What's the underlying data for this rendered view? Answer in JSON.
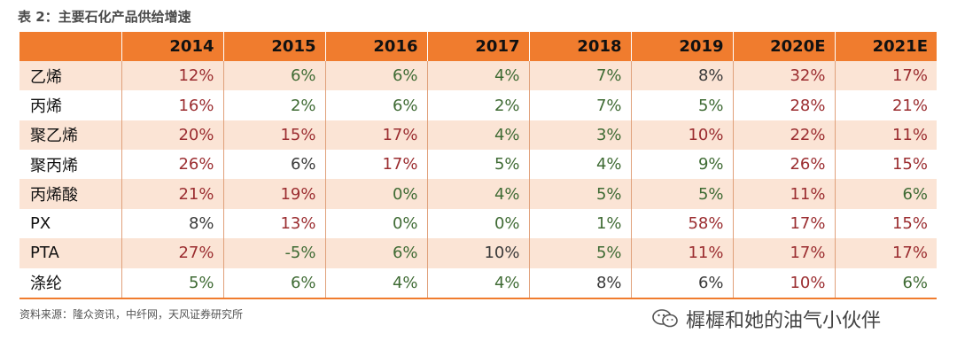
{
  "title": "表 2：主要石化产品供给增速",
  "header": [
    "",
    "2014",
    "2015",
    "2016",
    "2017",
    "2018",
    "2019",
    "2020E",
    "2021E"
  ],
  "rows": [
    {
      "label": "乙烯",
      "values": [
        "12%",
        "6%",
        "6%",
        "4%",
        "7%",
        "8%",
        "32%",
        "17%"
      ],
      "colors": [
        "red",
        "green",
        "green",
        "green",
        "green",
        "grey",
        "red",
        "red"
      ]
    },
    {
      "label": "丙烯",
      "values": [
        "16%",
        "2%",
        "6%",
        "2%",
        "7%",
        "5%",
        "28%",
        "21%"
      ],
      "colors": [
        "red",
        "green",
        "green",
        "green",
        "green",
        "green",
        "red",
        "red"
      ]
    },
    {
      "label": "聚乙烯",
      "values": [
        "20%",
        "15%",
        "17%",
        "4%",
        "3%",
        "10%",
        "22%",
        "11%"
      ],
      "colors": [
        "red",
        "red",
        "red",
        "green",
        "green",
        "red",
        "red",
        "red"
      ]
    },
    {
      "label": "聚丙烯",
      "values": [
        "26%",
        "6%",
        "17%",
        "5%",
        "4%",
        "9%",
        "26%",
        "15%"
      ],
      "colors": [
        "red",
        "grey",
        "red",
        "green",
        "green",
        "green",
        "red",
        "red"
      ]
    },
    {
      "label": "丙烯酸",
      "values": [
        "21%",
        "19%",
        "0%",
        "4%",
        "5%",
        "5%",
        "11%",
        "6%"
      ],
      "colors": [
        "red",
        "red",
        "green",
        "green",
        "green",
        "green",
        "red",
        "green"
      ]
    },
    {
      "label": "PX",
      "values": [
        "8%",
        "13%",
        "0%",
        "0%",
        "1%",
        "58%",
        "17%",
        "15%"
      ],
      "colors": [
        "grey",
        "red",
        "green",
        "green",
        "green",
        "red",
        "red",
        "red"
      ]
    },
    {
      "label": "PTA",
      "values": [
        "27%",
        "-5%",
        "6%",
        "10%",
        "5%",
        "11%",
        "17%",
        "17%"
      ],
      "colors": [
        "red",
        "green",
        "green",
        "grey",
        "green",
        "red",
        "red",
        "red"
      ]
    },
    {
      "label": "涤纶",
      "values": [
        "5%",
        "6%",
        "4%",
        "4%",
        "8%",
        "6%",
        "10%",
        "6%"
      ],
      "colors": [
        "green",
        "green",
        "green",
        "green",
        "grey",
        "grey",
        "red",
        "green"
      ]
    }
  ],
  "source": "资料来源：隆众资讯，中纤网，天风证券研究所",
  "watermark": "樨樨和她的油气小伙伴",
  "watermark_icon": "wechat-icon"
}
